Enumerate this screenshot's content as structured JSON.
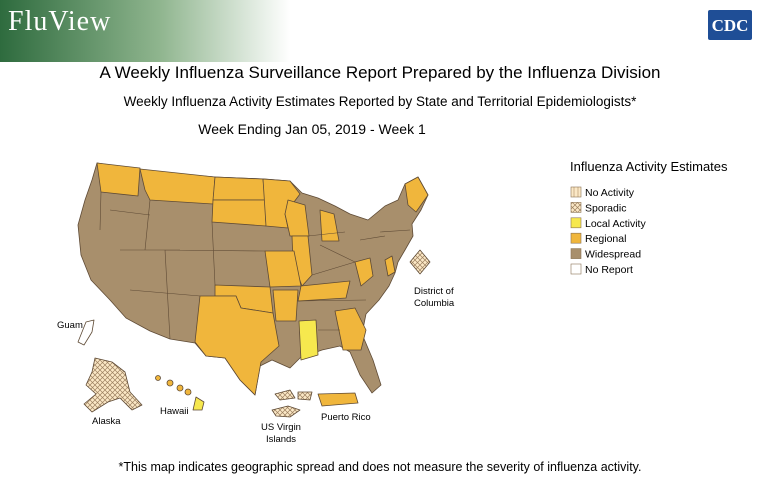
{
  "header": {
    "logo": "FluView",
    "agency": "CDC"
  },
  "title": "A Weekly Influenza Surveillance Report Prepared by the Influenza Division",
  "subtitle": "Weekly Influenza Activity Estimates Reported by State and Territorial Epidemiologists*",
  "week": "Week Ending Jan 05, 2019 - Week 1",
  "legend": {
    "title": "Influenza Activity Estimates",
    "items": [
      {
        "label": "No Activity",
        "color": "#fbe8c6",
        "pattern": "lines"
      },
      {
        "label": "Sporadic",
        "color": "#fbe8c6",
        "pattern": "cross"
      },
      {
        "label": "Local Activity",
        "color": "#f6e84e"
      },
      {
        "label": "Regional",
        "color": "#f0b63c"
      },
      {
        "label": "Widespread",
        "color": "#a88f6c"
      },
      {
        "label": "No Report",
        "color": "#ffffff"
      }
    ]
  },
  "map_labels": {
    "guam": {
      "lines": [
        "Guam"
      ]
    },
    "alaska": {
      "lines": [
        "Alaska"
      ]
    },
    "hawaii": {
      "lines": [
        "Hawaii"
      ]
    },
    "dc": {
      "lines": [
        "District of",
        "Columbia"
      ]
    },
    "usvi": {
      "lines": [
        "US Virgin",
        "Islands"
      ]
    },
    "puerto_rico": {
      "lines": [
        "Puerto Rico"
      ]
    }
  },
  "footnote": "*This map indicates geographic spread and does not measure the severity of influenza activity."
}
